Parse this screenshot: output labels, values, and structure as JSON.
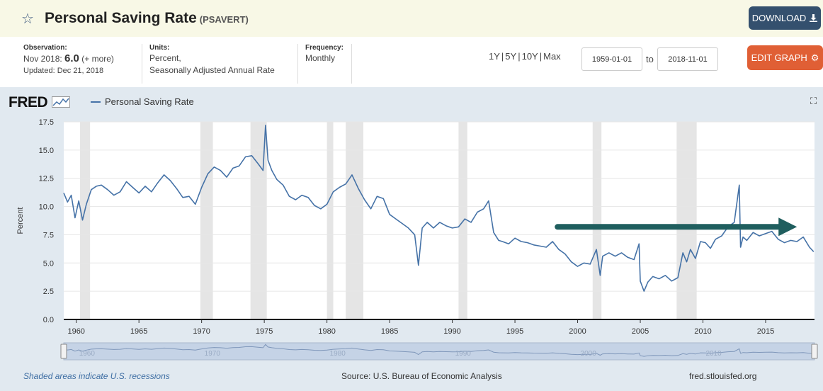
{
  "header": {
    "star_icon": "star-outline-icon",
    "title": "Personal Saving Rate",
    "series_id": "(PSAVERT)",
    "download_label": "DOWNLOAD",
    "download_icon": "download-icon"
  },
  "meta": {
    "observation_label": "Observation:",
    "observation_period": "Nov 2018:",
    "observation_value": "6.0",
    "observation_more": "(+ more)",
    "updated": "Updated: Dec 21, 2018",
    "units_label": "Units:",
    "units_line1": "Percent,",
    "units_line2": "Seasonally Adjusted Annual Rate",
    "frequency_label": "Frequency:",
    "frequency_value": "Monthly"
  },
  "controls": {
    "range_1y": "1Y",
    "range_5y": "5Y",
    "range_10y": "10Y",
    "range_max": "Max",
    "start_date": "1959-01-01",
    "to_label": "to",
    "end_date": "2018-11-01",
    "edit_label": "EDIT GRAPH",
    "edit_icon": "gear-icon"
  },
  "graph": {
    "logo_text": "FRED",
    "logo_icon": "chart-line-icon",
    "expand_icon": "expand-icon"
  },
  "footer": {
    "recession_note": "Shaded areas indicate U.S. recessions",
    "source": "Source: U.S. Bureau of Economic Analysis",
    "site": "fred.stlouisfed.org"
  },
  "colors": {
    "series": "#4572a7",
    "recession": "#e5e5e5",
    "arrow": "#1f5e5e",
    "header_bg": "#f8f8e6",
    "download_btn": "#34506e",
    "edit_btn": "#e05f35",
    "graph_bg": "#e1e9f0"
  },
  "chart_data": {
    "type": "line",
    "title": "",
    "xlabel": "",
    "ylabel": "Percent",
    "xlim": [
      1959.0,
      2018.9
    ],
    "ylim": [
      0,
      17.5
    ],
    "yticks": [
      "0.0",
      "2.5",
      "5.0",
      "7.5",
      "10.0",
      "12.5",
      "15.0",
      "17.5"
    ],
    "xticks": [
      "1960",
      "1965",
      "1970",
      "1975",
      "1980",
      "1985",
      "1990",
      "1995",
      "2000",
      "2005",
      "2010",
      "2015"
    ],
    "grid": "horizontal",
    "legend": "top-left",
    "series": [
      {
        "name": "Personal Saving Rate",
        "x": [
          1959.0,
          1959.3,
          1959.6,
          1959.9,
          1960.2,
          1960.5,
          1960.8,
          1961.2,
          1961.6,
          1962.0,
          1962.5,
          1963.0,
          1963.5,
          1964.0,
          1964.5,
          1965.0,
          1965.5,
          1966.0,
          1966.5,
          1967.0,
          1967.5,
          1968.0,
          1968.5,
          1969.0,
          1969.5,
          1970.0,
          1970.5,
          1971.0,
          1971.5,
          1972.0,
          1972.5,
          1973.0,
          1973.5,
          1974.0,
          1974.5,
          1974.9,
          1975.1,
          1975.3,
          1975.6,
          1976.0,
          1976.5,
          1977.0,
          1977.5,
          1978.0,
          1978.5,
          1979.0,
          1979.5,
          1980.0,
          1980.5,
          1981.0,
          1981.5,
          1982.0,
          1982.5,
          1983.0,
          1983.5,
          1984.0,
          1984.5,
          1985.0,
          1985.5,
          1986.0,
          1986.5,
          1987.0,
          1987.3,
          1987.6,
          1988.0,
          1988.5,
          1989.0,
          1989.5,
          1990.0,
          1990.5,
          1991.0,
          1991.5,
          1992.0,
          1992.5,
          1992.9,
          1993.3,
          1993.7,
          1994.0,
          1994.5,
          1995.0,
          1995.5,
          1996.0,
          1996.5,
          1997.0,
          1997.5,
          1998.0,
          1998.5,
          1999.0,
          1999.5,
          2000.0,
          2000.5,
          2001.0,
          2001.5,
          2001.8,
          2002.0,
          2002.5,
          2003.0,
          2003.5,
          2004.0,
          2004.5,
          2004.9,
          2005.0,
          2005.3,
          2005.6,
          2006.0,
          2006.5,
          2007.0,
          2007.5,
          2008.0,
          2008.4,
          2008.7,
          2009.0,
          2009.4,
          2009.8,
          2010.2,
          2010.6,
          2011.0,
          2011.5,
          2012.0,
          2012.5,
          2012.9,
          2013.0,
          2013.2,
          2013.5,
          2014.0,
          2014.5,
          2015.0,
          2015.5,
          2016.0,
          2016.5,
          2017.0,
          2017.5,
          2018.0,
          2018.5,
          2018.83
        ],
        "values": [
          11.2,
          10.4,
          11.0,
          9.0,
          10.5,
          8.8,
          10.2,
          11.5,
          11.8,
          11.9,
          11.5,
          11.0,
          11.3,
          12.2,
          11.7,
          11.2,
          11.8,
          11.3,
          12.1,
          12.8,
          12.3,
          11.6,
          10.8,
          10.9,
          10.2,
          11.7,
          12.9,
          13.5,
          13.2,
          12.6,
          13.4,
          13.6,
          14.4,
          14.5,
          13.8,
          13.2,
          17.2,
          14.1,
          13.2,
          12.4,
          11.9,
          10.9,
          10.6,
          11.0,
          10.8,
          10.1,
          9.8,
          10.2,
          11.3,
          11.7,
          12.0,
          12.8,
          11.6,
          10.6,
          9.8,
          10.9,
          10.7,
          9.3,
          8.9,
          8.5,
          8.1,
          7.5,
          4.8,
          8.1,
          8.6,
          8.1,
          8.6,
          8.3,
          8.1,
          8.2,
          8.9,
          8.6,
          9.5,
          9.8,
          10.5,
          7.7,
          7.0,
          6.9,
          6.7,
          7.2,
          6.9,
          6.8,
          6.6,
          6.5,
          6.4,
          6.9,
          6.2,
          5.8,
          5.1,
          4.7,
          5.0,
          4.9,
          6.2,
          3.9,
          5.6,
          5.9,
          5.6,
          5.9,
          5.5,
          5.3,
          6.7,
          3.4,
          2.5,
          3.3,
          3.8,
          3.6,
          3.9,
          3.4,
          3.7,
          5.9,
          5.1,
          6.2,
          5.4,
          6.9,
          6.8,
          6.3,
          7.1,
          7.4,
          8.2,
          8.6,
          11.9,
          6.4,
          7.3,
          7.0,
          7.7,
          7.4,
          7.6,
          7.8,
          7.1,
          6.8,
          7.0,
          6.9,
          7.3,
          6.4,
          6.0
        ]
      }
    ],
    "recessions": [
      [
        1960.3,
        1961.1
      ],
      [
        1969.9,
        1970.9
      ],
      [
        1973.9,
        1975.2
      ],
      [
        1980.0,
        1980.5
      ],
      [
        1981.5,
        1982.9
      ],
      [
        1990.5,
        1991.2
      ],
      [
        2001.2,
        2001.9
      ],
      [
        2007.9,
        2009.5
      ]
    ],
    "annotations": [
      {
        "type": "arrow",
        "x1": 1998.4,
        "x2": 2017.5,
        "y": 8.2
      }
    ]
  }
}
